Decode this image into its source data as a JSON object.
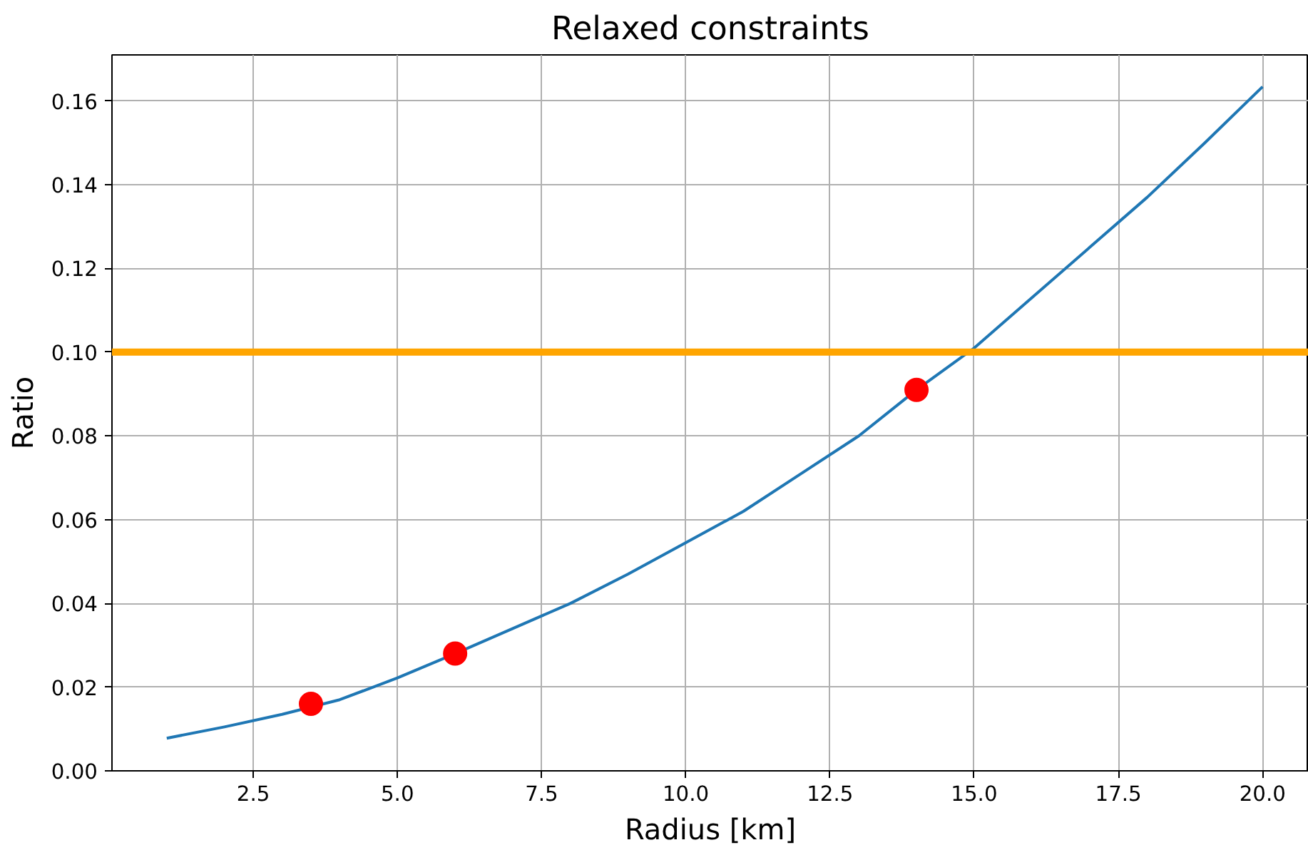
{
  "chart_data": {
    "type": "line",
    "title": "Relaxed constraints",
    "xlabel": "Radius [km]",
    "ylabel": "Ratio",
    "xlim": [
      0.05,
      20.8
    ],
    "ylim": [
      0,
      0.171
    ],
    "xticks": [
      {
        "value": 2.5,
        "label": "2.5"
      },
      {
        "value": 5,
        "label": "5.0"
      },
      {
        "value": 7.5,
        "label": "7.5"
      },
      {
        "value": 10,
        "label": "10.0"
      },
      {
        "value": 12.5,
        "label": "12.5"
      },
      {
        "value": 15,
        "label": "15.0"
      },
      {
        "value": 17.5,
        "label": "17.5"
      },
      {
        "value": 20,
        "label": "20.0"
      }
    ],
    "yticks": [
      {
        "value": 0,
        "label": "0.00"
      },
      {
        "value": 0.02,
        "label": "0.02"
      },
      {
        "value": 0.04,
        "label": "0.04"
      },
      {
        "value": 0.06,
        "label": "0.06"
      },
      {
        "value": 0.08,
        "label": "0.08"
      },
      {
        "value": 0.1,
        "label": "0.10"
      },
      {
        "value": 0.12,
        "label": "0.12"
      },
      {
        "value": 0.14,
        "label": "0.14"
      },
      {
        "value": 0.16,
        "label": "0.16"
      }
    ],
    "grid": true,
    "series": [
      {
        "color": "#1f77b4",
        "x": [
          1,
          2,
          3,
          4,
          5,
          6,
          7,
          8,
          9,
          10,
          11,
          12,
          13,
          14,
          15,
          16,
          17,
          18,
          19,
          20
        ],
        "values": [
          0.0078,
          0.0105,
          0.0135,
          0.017,
          0.0222,
          0.028,
          0.034,
          0.04,
          0.047,
          0.0545,
          0.062,
          0.071,
          0.08,
          0.091,
          0.101,
          0.113,
          0.125,
          0.137,
          0.15,
          0.1634
        ]
      },
      {
        "type": "scatter",
        "marker": "circle",
        "color": "#ff0000",
        "x": [
          3.5,
          6,
          14
        ],
        "values": [
          0.016,
          0.028,
          0.091
        ]
      }
    ],
    "ref_lines": [
      {
        "axis": "y",
        "value": 0.1,
        "color": "#ffa500"
      }
    ]
  }
}
